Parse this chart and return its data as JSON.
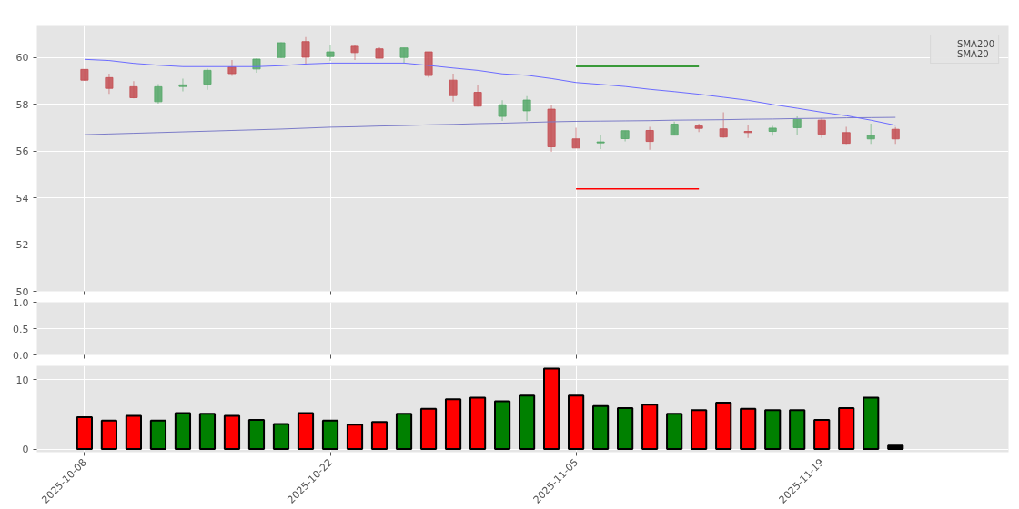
{
  "chart_data": [
    {
      "type": "candlestick",
      "categories": [
        "2025-10-08",
        null,
        null,
        null,
        null,
        null,
        null,
        null,
        null,
        null,
        "2025-10-22",
        null,
        null,
        null,
        null,
        null,
        null,
        null,
        null,
        null,
        "2025-11-05",
        null,
        null,
        null,
        null,
        null,
        null,
        null,
        null,
        null,
        "2025-11-19",
        null,
        null,
        null
      ],
      "ohlc": [
        [
          59.49,
          59.5,
          59.0,
          59.03
        ],
        [
          59.14,
          59.31,
          58.44,
          58.68
        ],
        [
          58.75,
          58.99,
          58.25,
          58.28
        ],
        [
          58.11,
          58.86,
          58.03,
          58.75
        ],
        [
          58.76,
          59.1,
          58.55,
          58.83
        ],
        [
          58.86,
          59.52,
          58.62,
          59.45
        ],
        [
          59.59,
          59.89,
          59.21,
          59.31
        ],
        [
          59.51,
          59.96,
          59.35,
          59.93
        ],
        [
          60.0,
          60.65,
          59.98,
          60.63
        ],
        [
          60.68,
          60.87,
          59.7,
          60.01
        ],
        [
          60.04,
          60.54,
          59.85,
          60.24
        ],
        [
          60.48,
          60.55,
          59.89,
          60.21
        ],
        [
          60.37,
          60.44,
          59.96,
          59.97
        ],
        [
          60.0,
          60.41,
          59.77,
          60.41
        ],
        [
          60.24,
          60.24,
          59.14,
          59.23
        ],
        [
          59.03,
          59.31,
          58.11,
          58.37
        ],
        [
          58.51,
          58.83,
          57.9,
          57.92
        ],
        [
          57.48,
          58.17,
          57.29,
          57.98
        ],
        [
          57.72,
          58.35,
          57.29,
          58.18
        ],
        [
          57.79,
          57.95,
          55.97,
          56.18
        ],
        [
          56.52,
          57.0,
          56.12,
          56.13
        ],
        [
          56.35,
          56.69,
          56.08,
          56.39
        ],
        [
          56.53,
          56.87,
          56.41,
          56.87
        ],
        [
          56.88,
          57.04,
          56.05,
          56.41
        ],
        [
          56.68,
          57.26,
          56.68,
          57.15
        ],
        [
          57.07,
          57.17,
          56.81,
          56.97
        ],
        [
          56.95,
          57.66,
          56.57,
          56.6
        ],
        [
          56.84,
          57.12,
          56.56,
          56.79
        ],
        [
          56.84,
          57.07,
          56.66,
          56.98
        ],
        [
          57.0,
          57.48,
          56.68,
          57.36
        ],
        [
          57.32,
          57.41,
          56.56,
          56.72
        ],
        [
          56.79,
          57.04,
          56.3,
          56.33
        ],
        [
          56.52,
          57.17,
          56.31,
          56.68
        ],
        [
          56.93,
          57.03,
          56.31,
          56.52
        ]
      ],
      "colors": [
        "#c44e52",
        "#c44e52",
        "#c44e52",
        "#55a868",
        "#55a868",
        "#55a868",
        "#c44e52",
        "#55a868",
        "#55a868",
        "#c44e52",
        "#55a868",
        "#c44e52",
        "#c44e52",
        "#55a868",
        "#c44e52",
        "#c44e52",
        "#c44e52",
        "#55a868",
        "#55a868",
        "#c44e52",
        "#c44e52",
        "#55a868",
        "#55a868",
        "#c44e52",
        "#55a868",
        "#c44e52",
        "#c44e52",
        "#c44e52",
        "#55a868",
        "#55a868",
        "#c44e52",
        "#c44e52",
        "#55a868",
        "#c44e52"
      ],
      "series": [
        {
          "type": "line",
          "name": "SMA200",
          "color": "#7c7cc8",
          "values": [
            56.7,
            56.73,
            56.76,
            56.79,
            56.82,
            56.85,
            56.88,
            56.91,
            56.94,
            56.98,
            57.02,
            57.04,
            57.07,
            57.09,
            57.12,
            57.14,
            57.17,
            57.19,
            57.22,
            57.25,
            57.27,
            57.28,
            57.29,
            57.3,
            57.32,
            57.33,
            57.34,
            57.36,
            57.37,
            57.39,
            57.4,
            57.42,
            57.43,
            57.44
          ]
        },
        {
          "type": "line",
          "name": "SMA20",
          "color": "#6b6bff",
          "values": [
            59.92,
            59.87,
            59.75,
            59.67,
            59.61,
            59.61,
            59.61,
            59.61,
            59.65,
            59.72,
            59.76,
            59.76,
            59.76,
            59.76,
            59.66,
            59.55,
            59.45,
            59.3,
            59.24,
            59.1,
            58.93,
            58.85,
            58.76,
            58.64,
            58.54,
            58.43,
            58.3,
            58.17,
            57.99,
            57.83,
            57.66,
            57.51,
            57.32,
            57.1
          ]
        },
        {
          "type": "line",
          "color": "#008000",
          "values": [
            null,
            null,
            null,
            null,
            null,
            null,
            null,
            null,
            null,
            null,
            null,
            null,
            null,
            null,
            null,
            null,
            null,
            null,
            null,
            null,
            59.62,
            59.62,
            59.62,
            59.62,
            59.62,
            59.62,
            null,
            null,
            null,
            null,
            null,
            null,
            null,
            null
          ]
        },
        {
          "type": "line",
          "color": "#ff0000",
          "values": [
            null,
            null,
            null,
            null,
            null,
            null,
            null,
            null,
            null,
            null,
            null,
            null,
            null,
            null,
            null,
            null,
            null,
            null,
            null,
            null,
            54.38,
            54.38,
            54.38,
            54.38,
            54.38,
            54.38,
            null,
            null,
            null,
            null,
            null,
            null,
            null,
            null
          ]
        }
      ],
      "ylim": [
        50,
        61.35
      ],
      "yticks": [
        50,
        52,
        54,
        56,
        58,
        60
      ],
      "grid": true,
      "legend": "top right",
      "marker": "none",
      "tick_labels": "y"
    },
    {
      "type": "line",
      "categories": [
        "2025-10-08",
        null,
        null,
        null,
        null,
        null,
        null,
        null,
        null,
        null,
        "2025-10-22",
        null,
        null,
        null,
        null,
        null,
        null,
        null,
        null,
        null,
        "2025-11-05",
        null,
        null,
        null,
        null,
        null,
        null,
        null,
        null,
        null,
        "2025-11-19",
        null,
        null,
        null
      ],
      "ylim": [
        0,
        1
      ],
      "yticks": [
        {
          "value": 0,
          "label": "0.0"
        },
        0.5,
        {
          "value": 1,
          "label": "1.0"
        }
      ],
      "grid": true,
      "tick_labels": "y"
    },
    {
      "type": "bar",
      "categories": [
        "2025-10-08",
        null,
        null,
        null,
        null,
        null,
        null,
        null,
        null,
        null,
        "2025-10-22",
        null,
        null,
        null,
        null,
        null,
        null,
        null,
        null,
        null,
        "2025-11-05",
        null,
        null,
        null,
        null,
        null,
        null,
        null,
        null,
        null,
        "2025-11-19",
        null,
        null,
        null
      ],
      "values": [
        4.6,
        4.1,
        4.8,
        4.1,
        5.2,
        5.1,
        4.8,
        4.2,
        3.6,
        5.2,
        4.1,
        3.5,
        3.9,
        5.1,
        5.8,
        7.2,
        7.4,
        6.9,
        7.7,
        11.6,
        7.7,
        6.2,
        5.9,
        6.4,
        5.1,
        5.6,
        6.7,
        5.8,
        5.6,
        5.6,
        4.2,
        5.9,
        7.4,
        0.5
      ],
      "colors": [
        "#ff0000",
        "#ff0000",
        "#ff0000",
        "#008000",
        "#008000",
        "#008000",
        "#ff0000",
        "#008000",
        "#008000",
        "#ff0000",
        "#008000",
        "#ff0000",
        "#ff0000",
        "#008000",
        "#ff0000",
        "#ff0000",
        "#ff0000",
        "#008000",
        "#008000",
        "#ff0000",
        "#ff0000",
        "#008000",
        "#008000",
        "#ff0000",
        "#008000",
        "#ff0000",
        "#ff0000",
        "#ff0000",
        "#008000",
        "#008000",
        "#ff0000",
        "#ff0000",
        "#008000",
        "#000000"
      ],
      "ylim": [
        -0.45,
        12
      ],
      "yticks": [
        0,
        10
      ],
      "grid": true
    }
  ]
}
